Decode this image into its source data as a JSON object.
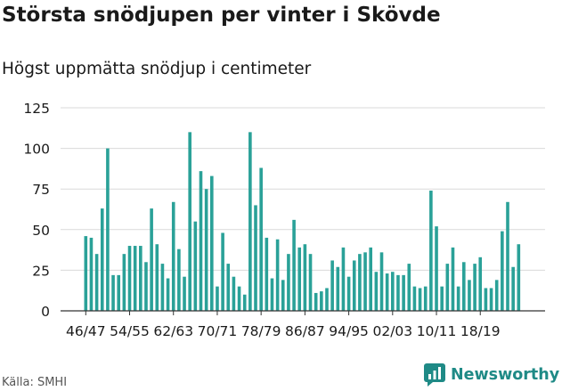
{
  "title": "Största snödjupen per vinter i Skövde",
  "subtitle": "Högst uppmätta snödjup i centimeter",
  "source": "Källa: SMHI",
  "brand": {
    "name": "Newsworthy",
    "icon": "newsworthy-logo-icon",
    "color": "#1f8a86"
  },
  "chart_data": {
    "type": "bar",
    "color": "#2aa198",
    "ylim": [
      0,
      125
    ],
    "yticks": [
      0,
      25,
      50,
      75,
      100,
      125
    ],
    "xtick_labels": [
      "46/47",
      "54/55",
      "62/63",
      "70/71",
      "78/79",
      "86/87",
      "94/95",
      "02/03",
      "10/11",
      "18/19"
    ],
    "values": [
      46,
      45,
      35,
      63,
      100,
      22,
      22,
      35,
      40,
      40,
      40,
      30,
      63,
      41,
      29,
      20,
      67,
      38,
      21,
      110,
      55,
      86,
      75,
      83,
      15,
      48,
      29,
      21,
      15,
      10,
      110,
      65,
      88,
      45,
      20,
      44,
      19,
      35,
      56,
      39,
      41,
      35,
      11,
      12,
      14,
      31,
      27,
      39,
      21,
      31,
      35,
      36,
      39,
      24,
      36,
      23,
      24,
      22,
      22,
      29,
      15,
      14,
      15,
      74,
      52,
      15,
      29,
      39,
      15,
      30,
      19,
      29,
      33,
      14,
      14,
      19,
      49,
      67,
      27,
      41
    ],
    "xlabel": "",
    "ylabel": ""
  }
}
